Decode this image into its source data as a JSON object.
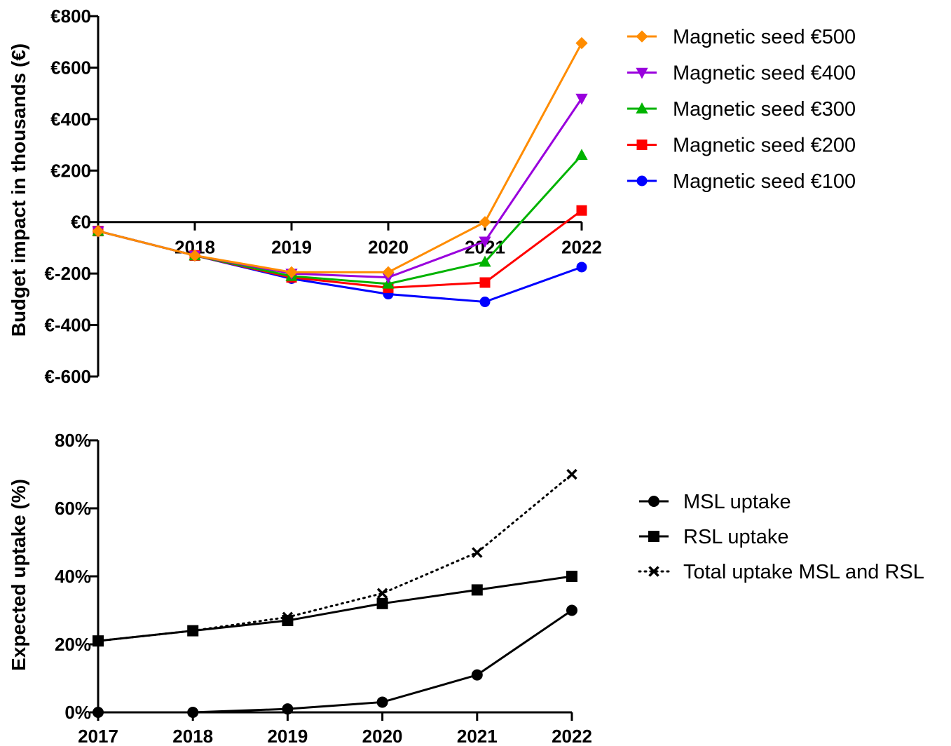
{
  "chart_data": [
    {
      "type": "line",
      "ylabel": "Budget impact in thousands (€)",
      "y_tick_labels": [
        "€800",
        "€600",
        "€400",
        "€200",
        "€0",
        "€-200",
        "€-400",
        "€-600"
      ],
      "y_tick_values": [
        800,
        600,
        400,
        200,
        0,
        -200,
        -400,
        -600
      ],
      "ylim": [
        -600,
        800
      ],
      "x_tick_labels": [
        "2018",
        "2019",
        "2020",
        "2021",
        "2022"
      ],
      "x_tick_values": [
        2018,
        2019,
        2020,
        2021,
        2022
      ],
      "xlim": [
        2017,
        2022
      ],
      "legend_position": "top-right",
      "x": [
        2017,
        2018,
        2019,
        2020,
        2021,
        2022
      ],
      "series": [
        {
          "name": "Magnetic seed €500",
          "color": "#ff8c00",
          "marker": "diamond",
          "values": [
            -35,
            -130,
            -195,
            -195,
            0,
            695
          ]
        },
        {
          "name": "Magnetic seed €400",
          "color": "#9900dd",
          "marker": "triangle-down",
          "values": [
            -35,
            -130,
            -200,
            -215,
            -75,
            480
          ]
        },
        {
          "name": "Magnetic seed €300",
          "color": "#00b300",
          "marker": "triangle-up",
          "values": [
            -35,
            -130,
            -210,
            -240,
            -155,
            260
          ]
        },
        {
          "name": "Magnetic seed €200",
          "color": "#ff0000",
          "marker": "square",
          "values": [
            -35,
            -130,
            -215,
            -255,
            -235,
            45
          ]
        },
        {
          "name": "Magnetic seed €100",
          "color": "#0000ff",
          "marker": "circle",
          "values": [
            -35,
            -130,
            -220,
            -280,
            -310,
            -175
          ]
        }
      ]
    },
    {
      "type": "line",
      "ylabel": "Expected uptake (%)",
      "y_tick_labels": [
        "80%",
        "60%",
        "40%",
        "20%",
        "0%"
      ],
      "y_tick_values": [
        80,
        60,
        40,
        20,
        0
      ],
      "ylim": [
        0,
        80
      ],
      "x_tick_labels": [
        "2017",
        "2018",
        "2019",
        "2020",
        "2021",
        "2022"
      ],
      "x_tick_values": [
        2017,
        2018,
        2019,
        2020,
        2021,
        2022
      ],
      "xlim": [
        2017,
        2022
      ],
      "legend_position": "right",
      "x": [
        2017,
        2018,
        2019,
        2020,
        2021,
        2022
      ],
      "series": [
        {
          "name": "MSL uptake",
          "color": "#000000",
          "marker": "circle",
          "line": "solid",
          "values": [
            0,
            0,
            1,
            3,
            11,
            30
          ]
        },
        {
          "name": "RSL uptake",
          "color": "#000000",
          "marker": "square",
          "line": "solid",
          "values": [
            21,
            24,
            27,
            32,
            36,
            40
          ]
        },
        {
          "name": "Total uptake MSL and RSL",
          "color": "#000000",
          "marker": "x",
          "line": "dotted",
          "values": [
            21,
            24,
            28,
            35,
            47,
            70
          ]
        }
      ]
    }
  ]
}
